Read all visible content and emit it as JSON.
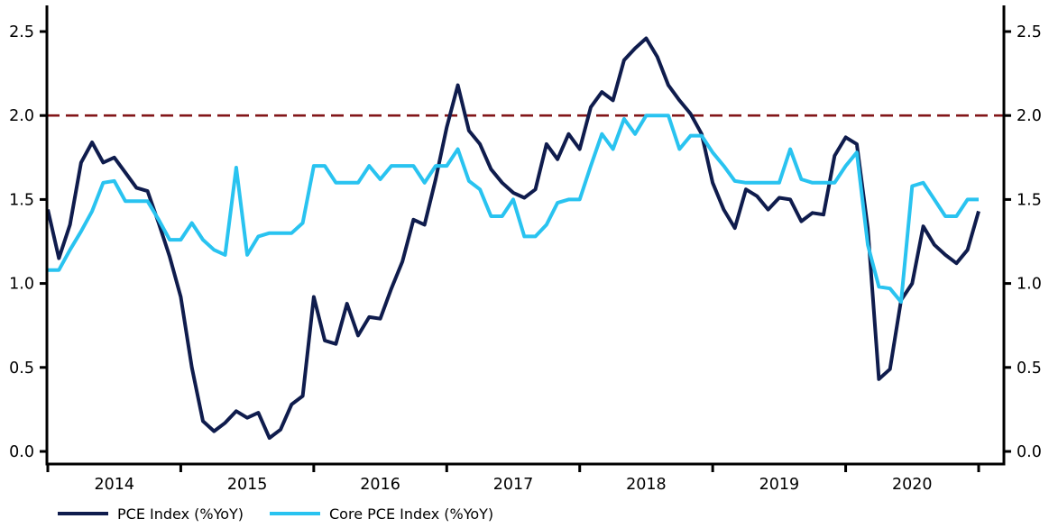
{
  "chart_data": {
    "type": "line",
    "title": "",
    "x_start": "2014-01",
    "x_frequency": "monthly",
    "x_year_labels": [
      "2014",
      "2015",
      "2016",
      "2017",
      "2018",
      "2019",
      "2020"
    ],
    "ylim": [
      0,
      2.5
    ],
    "y_ticks": [
      "0.0",
      "0.5",
      "1.0",
      "1.5",
      "2.0",
      "2.5"
    ],
    "y_axis_sides": [
      "left",
      "right"
    ],
    "grid": false,
    "legend_position": "bottom-left",
    "reference_line": {
      "value": 2.0,
      "style": "dashed",
      "color": "#821518"
    },
    "axis_color": "#000000",
    "series": [
      {
        "name": "PCE Index (%YoY)",
        "color": "#0f1c4d",
        "values": [
          1.44,
          1.15,
          1.35,
          1.72,
          1.84,
          1.72,
          1.75,
          1.66,
          1.57,
          1.55,
          1.36,
          1.16,
          0.92,
          0.5,
          0.18,
          0.12,
          0.17,
          0.24,
          0.2,
          0.23,
          0.08,
          0.13,
          0.28,
          0.33,
          0.92,
          0.66,
          0.64,
          0.88,
          0.69,
          0.8,
          0.79,
          0.97,
          1.13,
          1.38,
          1.35,
          1.62,
          1.93,
          2.18,
          1.91,
          1.83,
          1.68,
          1.6,
          1.54,
          1.51,
          1.56,
          1.83,
          1.74,
          1.89,
          1.8,
          2.05,
          2.14,
          2.09,
          2.33,
          2.4,
          2.46,
          2.35,
          2.18,
          2.09,
          2.01,
          1.89,
          1.6,
          1.44,
          1.33,
          1.56,
          1.52,
          1.44,
          1.51,
          1.5,
          1.37,
          1.42,
          1.41,
          1.76,
          1.87,
          1.83,
          1.33,
          0.43,
          0.49,
          0.9,
          1.0,
          1.34,
          1.23,
          1.17,
          1.12,
          1.2,
          1.43
        ]
      },
      {
        "name": "Core PCE Index (%YoY)",
        "color": "#29c3f0",
        "values": [
          1.08,
          1.08,
          1.2,
          1.31,
          1.43,
          1.6,
          1.61,
          1.49,
          1.49,
          1.49,
          1.38,
          1.26,
          1.26,
          1.36,
          1.26,
          1.2,
          1.17,
          1.69,
          1.17,
          1.28,
          1.3,
          1.3,
          1.3,
          1.36,
          1.7,
          1.7,
          1.6,
          1.6,
          1.6,
          1.7,
          1.62,
          1.7,
          1.7,
          1.7,
          1.6,
          1.7,
          1.7,
          1.8,
          1.61,
          1.56,
          1.4,
          1.4,
          1.5,
          1.28,
          1.28,
          1.35,
          1.48,
          1.5,
          1.5,
          1.7,
          1.89,
          1.8,
          1.98,
          1.89,
          2.0,
          2.0,
          2.0,
          1.8,
          1.88,
          1.88,
          1.78,
          1.7,
          1.61,
          1.6,
          1.6,
          1.6,
          1.6,
          1.8,
          1.62,
          1.6,
          1.6,
          1.6,
          1.7,
          1.78,
          1.23,
          0.98,
          0.97,
          0.89,
          1.58,
          1.6,
          1.5,
          1.4,
          1.4,
          1.5,
          1.5
        ]
      }
    ]
  }
}
